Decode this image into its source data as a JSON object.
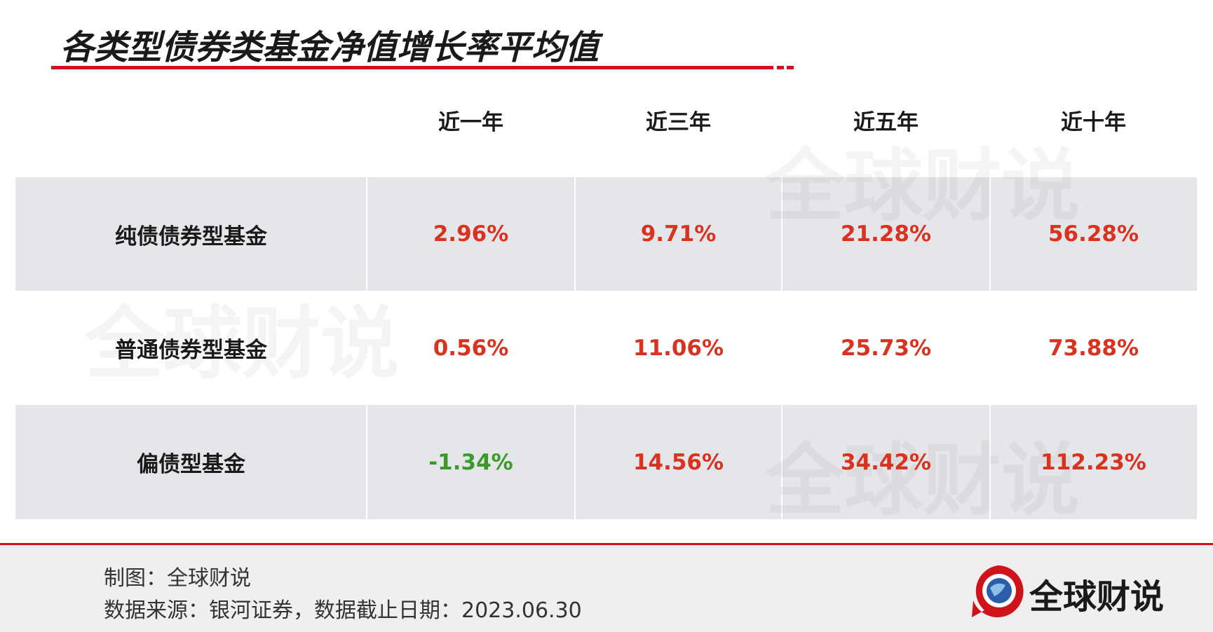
{
  "header": {
    "title": "各类型债券类基金净值增长率平均值"
  },
  "table": {
    "columns": [
      "近一年",
      "近三年",
      "近五年",
      "近十年"
    ],
    "rows": [
      [
        "纯债债券型基金",
        "2.96%",
        "9.71%",
        "21.28%",
        "56.28%"
      ],
      [
        "普通债券型基金",
        "0.56%",
        "11.06%",
        "25.73%",
        "73.88%"
      ],
      [
        "偏债型基金",
        "-1.34%",
        "14.56%",
        "34.42%",
        "112.23%"
      ]
    ]
  },
  "watermark": "全球财说",
  "footer": {
    "credit": "制图：全球财说",
    "source": "数据来源：银河证券，数据截止日期：2023.06.30",
    "logo": "全球财说"
  }
}
